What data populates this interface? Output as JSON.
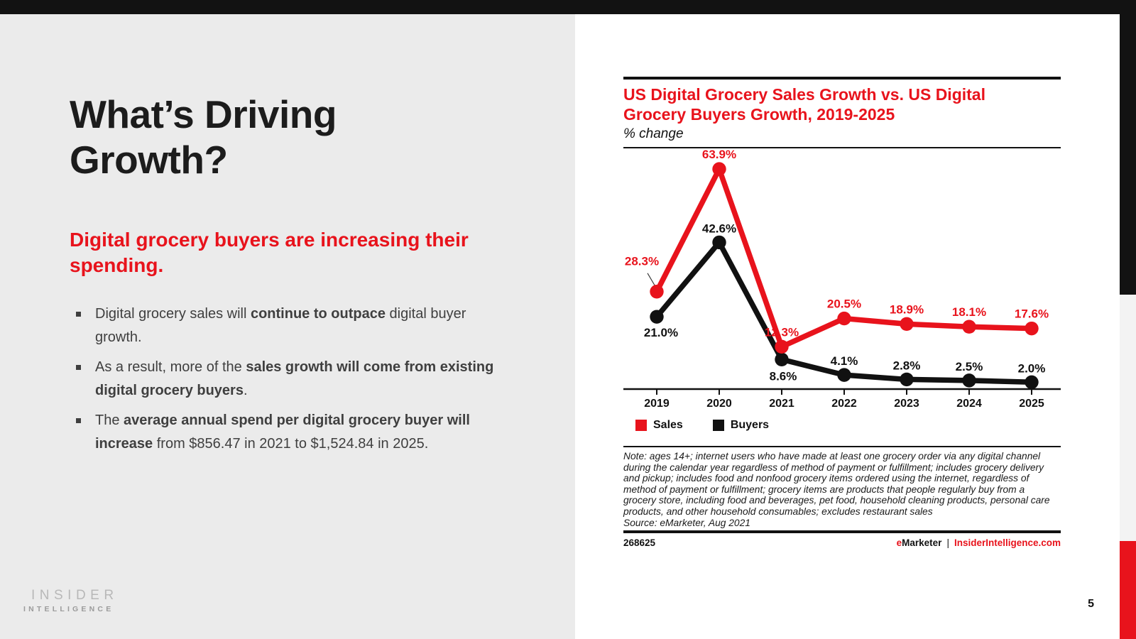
{
  "slide": {
    "page_number": "5"
  },
  "left": {
    "title": "What’s Driving\nGrowth?",
    "subtitle": "Digital grocery buyers are increasing their spending.",
    "bullets": [
      [
        {
          "t": "Digital grocery sales will ",
          "b": false
        },
        {
          "t": "continue to outpace",
          "b": true
        },
        {
          "t": " digital buyer growth.",
          "b": false
        }
      ],
      [
        {
          "t": "As a result, more of the ",
          "b": false
        },
        {
          "t": "sales growth will come from existing digital grocery buyers",
          "b": true
        },
        {
          "t": ".",
          "b": false
        }
      ],
      [
        {
          "t": "The ",
          "b": false
        },
        {
          "t": "average annual spend per digital grocery buyer will increase",
          "b": true
        },
        {
          "t": " from $856.47 in 2021 to $1,524.84 in 2025.",
          "b": false
        }
      ]
    ],
    "logo": {
      "line1": "INSIDER",
      "line2": "INTELLIGENCE"
    }
  },
  "chart": {
    "title": "US Digital Grocery Sales Growth vs. US Digital Grocery Buyers Growth, 2019-2025",
    "subtitle": "% change",
    "legend": [
      {
        "label": "Sales",
        "color": "#e8131c"
      },
      {
        "label": "Buyers",
        "color": "#111111"
      }
    ],
    "note": "Note: ages 14+; internet users who have made at least one grocery order via any digital channel during the calendar year regardless of method of payment or fulfillment; includes grocery delivery and pickup; includes food and nonfood grocery items ordered using the internet, regardless of method of payment or fulfillment; grocery items are products that people regularly buy from a grocery store, including food and beverages, pet food, household cleaning products, personal care products, and other household consumables; excludes restaurant sales",
    "source": "Source: eMarketer, Aug 2021",
    "chart_id": "268625",
    "brand": {
      "e": "e",
      "marketer": "Marketer",
      "divider": "|",
      "site": "InsiderIntelligence.com"
    }
  },
  "chart_data": {
    "type": "line",
    "title": "US Digital Grocery Sales Growth vs. US Digital Grocery Buyers Growth, 2019-2025",
    "ylabel": "% change",
    "categories": [
      "2019",
      "2020",
      "2021",
      "2022",
      "2023",
      "2024",
      "2025"
    ],
    "series": [
      {
        "name": "Sales",
        "color": "#e8131c",
        "values": [
          28.3,
          63.9,
          12.3,
          20.5,
          18.9,
          18.1,
          17.6
        ]
      },
      {
        "name": "Buyers",
        "color": "#111111",
        "values": [
          21.0,
          42.6,
          8.6,
          4.1,
          2.8,
          2.5,
          2.0
        ]
      }
    ],
    "ylim": [
      0,
      70
    ],
    "grid": false,
    "legend_position": "bottom",
    "labels_format": "one_decimal_percent"
  }
}
